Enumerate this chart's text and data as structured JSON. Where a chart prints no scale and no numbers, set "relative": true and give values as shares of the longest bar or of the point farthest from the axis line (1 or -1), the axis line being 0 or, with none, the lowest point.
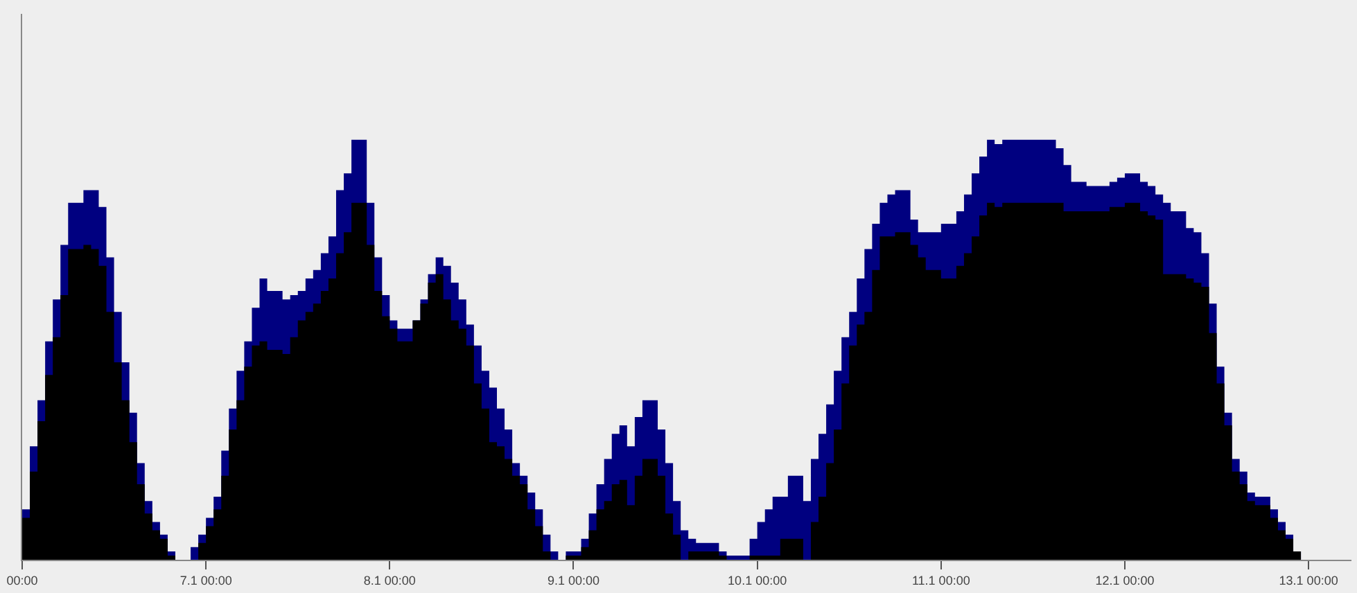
{
  "chart_data": {
    "type": "area",
    "relative": true,
    "tick_labels": "x",
    "xlim": [
      "--01-06T00:00",
      "--01-13T05:36"
    ],
    "xticks": [
      {
        "value": "--01-06T00:00",
        "label": "00:00"
      },
      {
        "value": "--01-07T00:00",
        "label": "7.1 00:00"
      },
      {
        "value": "--01-08T00:00",
        "label": "8.1 00:00"
      },
      {
        "value": "--01-09T00:00",
        "label": "9.1 00:00"
      },
      {
        "value": "--01-10T00:00",
        "label": "10.1 00:00"
      },
      {
        "value": "--01-11T00:00",
        "label": "11.1 00:00"
      },
      {
        "value": "--01-12T00:00",
        "label": "12.1 00:00"
      },
      {
        "value": "--01-13T00:00",
        "label": "13.1 00:00"
      }
    ],
    "x": [
      "--01-06T00:00",
      "--01-06T01:00",
      "--01-06T02:00",
      "--01-06T03:00",
      "--01-06T04:00",
      "--01-06T05:00",
      "--01-06T06:00",
      "--01-06T08:00",
      "--01-06T09:00",
      "--01-06T10:00",
      "--01-06T11:00",
      "--01-06T12:00",
      "--01-06T13:00",
      "--01-06T14:00",
      "--01-06T15:00",
      "--01-06T16:00",
      "--01-06T17:00",
      "--01-06T18:00",
      "--01-06T19:00",
      "--01-06T20:00",
      "--01-06T22:00",
      "--01-06T23:00",
      "--01-07T00:00",
      "--01-07T01:00",
      "--01-07T02:00",
      "--01-07T03:00",
      "--01-07T04:00",
      "--01-07T05:00",
      "--01-07T06:00",
      "--01-07T07:00",
      "--01-07T08:00",
      "--01-07T10:00",
      "--01-07T11:00",
      "--01-07T12:00",
      "--01-07T13:00",
      "--01-07T14:00",
      "--01-07T15:00",
      "--01-07T16:00",
      "--01-07T17:00",
      "--01-07T18:00",
      "--01-07T19:00",
      "--01-07T21:00",
      "--01-07T22:00",
      "--01-07T23:00",
      "--01-08T00:00",
      "--01-08T01:00",
      "--01-08T03:00",
      "--01-08T04:00",
      "--01-08T05:00",
      "--01-08T06:00",
      "--01-08T07:00",
      "--01-08T08:00",
      "--01-08T09:00",
      "--01-08T10:00",
      "--01-08T11:00",
      "--01-08T12:00",
      "--01-08T13:00",
      "--01-08T14:00",
      "--01-08T15:00",
      "--01-08T16:00",
      "--01-08T17:00",
      "--01-08T18:00",
      "--01-08T19:00",
      "--01-08T20:00",
      "--01-08T21:00",
      "--01-08T22:00",
      "--01-08T23:00",
      "--01-09T01:00",
      "--01-09T02:00",
      "--01-09T03:00",
      "--01-09T04:00",
      "--01-09T05:00",
      "--01-09T06:00",
      "--01-09T07:00",
      "--01-09T08:00",
      "--01-09T09:00",
      "--01-09T11:00",
      "--01-09T12:00",
      "--01-09T13:00",
      "--01-09T14:00",
      "--01-09T15:00",
      "--01-09T16:00",
      "--01-09T19:00",
      "--01-09T20:00",
      "--01-09T23:00",
      "--01-10T00:00",
      "--01-10T01:00",
      "--01-10T02:00",
      "--01-10T03:00",
      "--01-10T04:00",
      "--01-10T06:00",
      "--01-10T07:00",
      "--01-10T08:00",
      "--01-10T09:00",
      "--01-10T10:00",
      "--01-10T11:00",
      "--01-10T12:00",
      "--01-10T13:00",
      "--01-10T14:00",
      "--01-10T15:00",
      "--01-10T16:00",
      "--01-10T17:00",
      "--01-10T18:00",
      "--01-10T20:00",
      "--01-10T21:00",
      "--01-10T22:00",
      "--01-11T00:00",
      "--01-11T02:00",
      "--01-11T03:00",
      "--01-11T04:00",
      "--01-11T05:00",
      "--01-11T06:00",
      "--01-11T07:00",
      "--01-11T08:00",
      "--01-11T15:00",
      "--01-11T16:00",
      "--01-11T17:00",
      "--01-11T19:00",
      "--01-11T22:00",
      "--01-11T23:00",
      "--01-12T00:00",
      "--01-12T02:00",
      "--01-12T03:00",
      "--01-12T04:00",
      "--01-12T05:00",
      "--01-12T06:00",
      "--01-12T08:00",
      "--01-12T09:00",
      "--01-12T10:00",
      "--01-12T11:00",
      "--01-12T12:00",
      "--01-12T13:00",
      "--01-12T14:00",
      "--01-12T15:00",
      "--01-12T16:00",
      "--01-12T17:00",
      "--01-12T19:00",
      "--01-12T20:00",
      "--01-12T21:00",
      "--01-12T22:00",
      "--01-12T23:00"
    ],
    "series": [
      {
        "color": "#000080",
        "values": [
          0.12,
          0.27,
          0.38,
          0.52,
          0.62,
          0.75,
          0.85,
          0.88,
          0.88,
          0.84,
          0.72,
          0.59,
          0.47,
          0.35,
          0.23,
          0.14,
          0.09,
          0.06,
          0.02,
          0,
          0.03,
          0.06,
          0.1,
          0.15,
          0.26,
          0.36,
          0.45,
          0.52,
          0.6,
          0.67,
          0.64,
          0.62,
          0.63,
          0.64,
          0.67,
          0.69,
          0.73,
          0.77,
          0.88,
          0.92,
          1.0,
          0.85,
          0.72,
          0.63,
          0.57,
          0.55,
          0.57,
          0.62,
          0.68,
          0.72,
          0.7,
          0.66,
          0.62,
          0.56,
          0.51,
          0.45,
          0.41,
          0.36,
          0.31,
          0.23,
          0.2,
          0.16,
          0.12,
          0.06,
          0.02,
          0,
          0.02,
          0.05,
          0.11,
          0.18,
          0.24,
          0.3,
          0.32,
          0.27,
          0.34,
          0.38,
          0.31,
          0.23,
          0.14,
          0.07,
          0.05,
          0.04,
          0.02,
          0.01,
          0.05,
          0.09,
          0.12,
          0.15,
          0.15,
          0.2,
          0.14,
          0.24,
          0.3,
          0.37,
          0.45,
          0.53,
          0.59,
          0.67,
          0.74,
          0.8,
          0.85,
          0.87,
          0.88,
          0.81,
          0.78,
          0.78,
          0.8,
          0.83,
          0.87,
          0.92,
          0.96,
          1.0,
          0.99,
          1.0,
          0.98,
          0.94,
          0.9,
          0.89,
          0.9,
          0.91,
          0.92,
          0.9,
          0.89,
          0.87,
          0.85,
          0.83,
          0.79,
          0.78,
          0.73,
          0.61,
          0.46,
          0.35,
          0.24,
          0.21,
          0.16,
          0.15,
          0.12,
          0.09,
          0.06,
          0.02,
          0
        ]
      },
      {
        "color": "#000000",
        "values": [
          0.1,
          0.21,
          0.33,
          0.44,
          0.53,
          0.63,
          0.74,
          0.75,
          0.74,
          0.7,
          0.59,
          0.47,
          0.38,
          0.28,
          0.18,
          0.11,
          0.07,
          0.05,
          0.01,
          0,
          0,
          0.04,
          0.08,
          0.12,
          0.2,
          0.31,
          0.38,
          0.46,
          0.51,
          0.52,
          0.5,
          0.49,
          0.53,
          0.57,
          0.59,
          0.61,
          0.64,
          0.67,
          0.73,
          0.78,
          0.85,
          0.75,
          0.64,
          0.58,
          0.55,
          0.52,
          0.57,
          0.61,
          0.66,
          0.68,
          0.62,
          0.57,
          0.55,
          0.51,
          0.42,
          0.36,
          0.28,
          0.27,
          0.24,
          0.2,
          0.18,
          0.12,
          0.08,
          0.02,
          0,
          0,
          0.01,
          0.03,
          0.07,
          0.12,
          0.14,
          0.18,
          0.19,
          0.13,
          0.2,
          0.24,
          0.2,
          0.11,
          0.06,
          0,
          0.02,
          0.02,
          0.01,
          0,
          0.01,
          0.01,
          0.01,
          0.01,
          0.05,
          0.05,
          0,
          0.09,
          0.15,
          0.23,
          0.31,
          0.42,
          0.51,
          0.56,
          0.59,
          0.69,
          0.77,
          0.77,
          0.78,
          0.75,
          0.72,
          0.69,
          0.67,
          0.7,
          0.73,
          0.77,
          0.82,
          0.85,
          0.84,
          0.85,
          0.85,
          0.83,
          0.83,
          0.83,
          0.84,
          0.84,
          0.85,
          0.83,
          0.82,
          0.81,
          0.68,
          0.68,
          0.67,
          0.66,
          0.65,
          0.54,
          0.42,
          0.32,
          0.21,
          0.18,
          0.14,
          0.13,
          0.1,
          0.07,
          0.05,
          0.02,
          0
        ]
      }
    ]
  }
}
